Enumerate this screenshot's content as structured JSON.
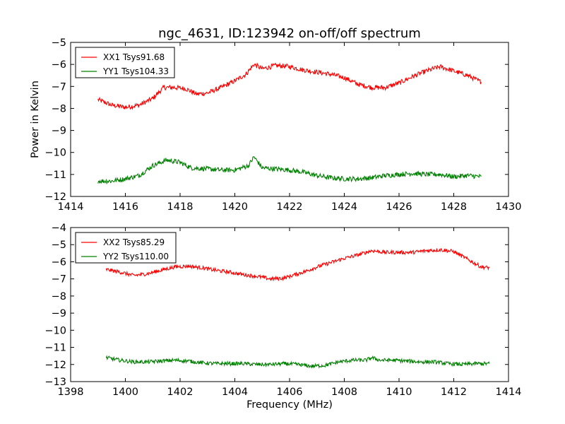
{
  "figure": {
    "title": "ngc_4631, ID:123942 on-off/off spectrum",
    "xlabel": "Frequency (MHz)",
    "ylabel": "Power in Kelvin"
  },
  "chart_data": [
    {
      "type": "line",
      "xlim": [
        1414,
        1430
      ],
      "ylim": [
        -12,
        -5
      ],
      "xticks": [
        1414,
        1416,
        1418,
        1420,
        1422,
        1424,
        1426,
        1428,
        1430
      ],
      "yticks": [
        -12,
        -11,
        -10,
        -9,
        -8,
        -7,
        -6,
        -5
      ],
      "grid": false,
      "legend_position": "top-left",
      "series": [
        {
          "name": "XX1 Tsys91.68",
          "color": "#ff0000",
          "points": [
            [
              1415.0,
              -7.6
            ],
            [
              1415.5,
              -7.85
            ],
            [
              1416.0,
              -7.95
            ],
            [
              1416.5,
              -7.85
            ],
            [
              1417.0,
              -7.55
            ],
            [
              1417.4,
              -7.05
            ],
            [
              1417.8,
              -7.05
            ],
            [
              1418.2,
              -7.1
            ],
            [
              1418.6,
              -7.35
            ],
            [
              1419.0,
              -7.3
            ],
            [
              1419.5,
              -7.05
            ],
            [
              1420.0,
              -6.75
            ],
            [
              1420.4,
              -6.45
            ],
            [
              1420.7,
              -6.0
            ],
            [
              1421.0,
              -6.2
            ],
            [
              1421.5,
              -6.05
            ],
            [
              1422.0,
              -6.1
            ],
            [
              1422.5,
              -6.25
            ],
            [
              1423.0,
              -6.35
            ],
            [
              1423.5,
              -6.45
            ],
            [
              1424.0,
              -6.6
            ],
            [
              1424.5,
              -6.9
            ],
            [
              1425.0,
              -7.05
            ],
            [
              1425.5,
              -7.05
            ],
            [
              1426.0,
              -6.85
            ],
            [
              1426.5,
              -6.55
            ],
            [
              1427.0,
              -6.3
            ],
            [
              1427.5,
              -6.1
            ],
            [
              1428.0,
              -6.3
            ],
            [
              1428.5,
              -6.5
            ],
            [
              1429.0,
              -6.8
            ]
          ]
        },
        {
          "name": "YY1 Tsys104.33",
          "color": "#008000",
          "points": [
            [
              1415.0,
              -11.3
            ],
            [
              1415.5,
              -11.3
            ],
            [
              1416.0,
              -11.2
            ],
            [
              1416.5,
              -11.05
            ],
            [
              1417.0,
              -10.6
            ],
            [
              1417.5,
              -10.35
            ],
            [
              1418.0,
              -10.45
            ],
            [
              1418.4,
              -10.7
            ],
            [
              1419.0,
              -10.75
            ],
            [
              1419.5,
              -10.8
            ],
            [
              1420.0,
              -10.8
            ],
            [
              1420.5,
              -10.6
            ],
            [
              1420.7,
              -10.2
            ],
            [
              1421.0,
              -10.7
            ],
            [
              1421.5,
              -10.75
            ],
            [
              1422.0,
              -10.8
            ],
            [
              1422.5,
              -10.9
            ],
            [
              1423.0,
              -11.05
            ],
            [
              1423.5,
              -11.15
            ],
            [
              1424.0,
              -11.2
            ],
            [
              1424.5,
              -11.2
            ],
            [
              1425.0,
              -11.15
            ],
            [
              1425.5,
              -11.05
            ],
            [
              1426.0,
              -11.0
            ],
            [
              1426.5,
              -10.95
            ],
            [
              1427.0,
              -11.0
            ],
            [
              1427.5,
              -11.0
            ],
            [
              1428.0,
              -11.1
            ],
            [
              1428.5,
              -11.05
            ],
            [
              1429.0,
              -11.1
            ]
          ]
        }
      ]
    },
    {
      "type": "line",
      "xlim": [
        1398,
        1414
      ],
      "ylim": [
        -13,
        -4
      ],
      "xticks": [
        1398,
        1400,
        1402,
        1404,
        1406,
        1408,
        1410,
        1412,
        1414
      ],
      "yticks": [
        -13,
        -12,
        -11,
        -10,
        -9,
        -8,
        -7,
        -6,
        -5,
        -4
      ],
      "grid": false,
      "legend_position": "top-left",
      "series": [
        {
          "name": "XX2 Tsys85.29",
          "color": "#ff0000",
          "points": [
            [
              1399.3,
              -6.45
            ],
            [
              1399.8,
              -6.6
            ],
            [
              1400.3,
              -6.8
            ],
            [
              1400.8,
              -6.7
            ],
            [
              1401.3,
              -6.5
            ],
            [
              1401.8,
              -6.3
            ],
            [
              1402.3,
              -6.25
            ],
            [
              1402.8,
              -6.35
            ],
            [
              1403.3,
              -6.5
            ],
            [
              1403.8,
              -6.6
            ],
            [
              1404.3,
              -6.75
            ],
            [
              1404.8,
              -6.85
            ],
            [
              1405.3,
              -7.0
            ],
            [
              1405.8,
              -6.95
            ],
            [
              1406.2,
              -6.75
            ],
            [
              1406.6,
              -6.55
            ],
            [
              1407.0,
              -6.3
            ],
            [
              1407.5,
              -6.05
            ],
            [
              1408.0,
              -5.8
            ],
            [
              1408.5,
              -5.6
            ],
            [
              1409.0,
              -5.35
            ],
            [
              1409.5,
              -5.45
            ],
            [
              1410.0,
              -5.45
            ],
            [
              1410.5,
              -5.45
            ],
            [
              1411.0,
              -5.35
            ],
            [
              1411.5,
              -5.3
            ],
            [
              1412.0,
              -5.4
            ],
            [
              1412.5,
              -5.85
            ],
            [
              1413.0,
              -6.3
            ],
            [
              1413.3,
              -6.35
            ]
          ]
        },
        {
          "name": "YY2 Tsys110.00",
          "color": "#008000",
          "points": [
            [
              1399.3,
              -11.6
            ],
            [
              1399.8,
              -11.75
            ],
            [
              1400.3,
              -11.85
            ],
            [
              1400.8,
              -11.85
            ],
            [
              1401.3,
              -11.8
            ],
            [
              1401.8,
              -11.75
            ],
            [
              1402.3,
              -11.8
            ],
            [
              1402.8,
              -11.9
            ],
            [
              1403.3,
              -11.95
            ],
            [
              1403.8,
              -11.95
            ],
            [
              1404.3,
              -11.95
            ],
            [
              1404.8,
              -12.0
            ],
            [
              1405.3,
              -12.0
            ],
            [
              1405.8,
              -11.95
            ],
            [
              1406.3,
              -12.0
            ],
            [
              1406.8,
              -12.1
            ],
            [
              1407.3,
              -12.05
            ],
            [
              1407.8,
              -11.85
            ],
            [
              1408.3,
              -11.75
            ],
            [
              1408.8,
              -11.75
            ],
            [
              1409.0,
              -11.6
            ],
            [
              1409.3,
              -11.75
            ],
            [
              1409.8,
              -11.75
            ],
            [
              1410.3,
              -11.8
            ],
            [
              1410.8,
              -11.85
            ],
            [
              1411.3,
              -11.85
            ],
            [
              1411.8,
              -11.95
            ],
            [
              1412.3,
              -12.0
            ],
            [
              1412.8,
              -11.95
            ],
            [
              1413.3,
              -11.95
            ]
          ]
        }
      ]
    }
  ]
}
